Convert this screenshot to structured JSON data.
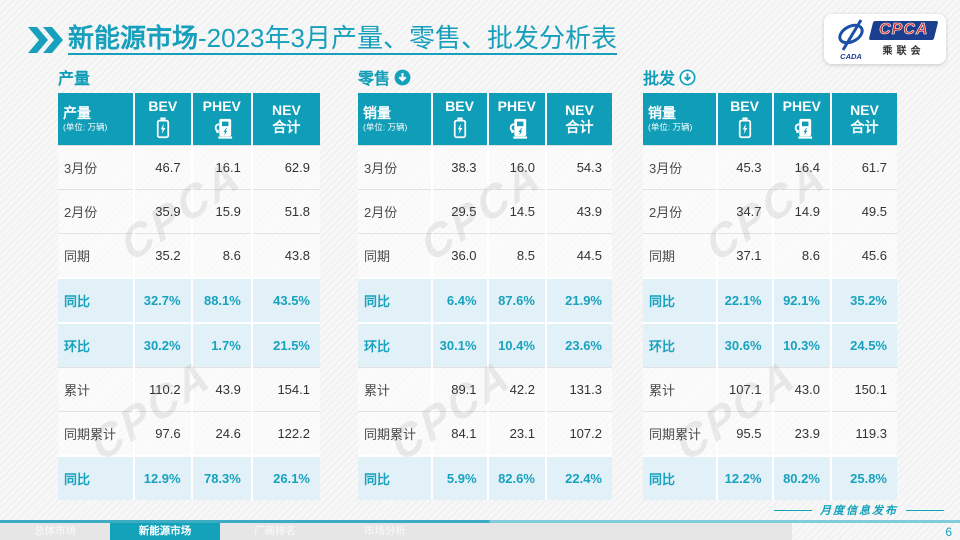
{
  "slide": {
    "title_bold": "新能源市场",
    "title_rest": "-2023年3月产量、零售、批发分析表",
    "footer_note": "月度信息发布",
    "page_number": "6"
  },
  "logo": {
    "cpca": "CPCA",
    "cada": "CADA",
    "assoc": "乘联会"
  },
  "columns": {
    "bev": "BEV",
    "phev": "PHEV",
    "nev_line1": "NEV",
    "nev_line2": "合计"
  },
  "unit_note": "(单位: 万辆)",
  "watermark": "CPCA",
  "highlight_rows": [
    3,
    4,
    7
  ],
  "tables": [
    {
      "section_title": "产量",
      "corner_label": "产量",
      "trend_icon": "none",
      "rows": [
        {
          "label": "3月份",
          "values": [
            "46.7",
            "16.1",
            "62.9"
          ]
        },
        {
          "label": "2月份",
          "values": [
            "35.9",
            "15.9",
            "51.8"
          ]
        },
        {
          "label": "同期",
          "values": [
            "35.2",
            "8.6",
            "43.8"
          ]
        },
        {
          "label": "同比",
          "values": [
            "32.7%",
            "88.1%",
            "43.5%"
          ]
        },
        {
          "label": "环比",
          "values": [
            "30.2%",
            "1.7%",
            "21.5%"
          ]
        },
        {
          "label": "累计",
          "values": [
            "110.2",
            "43.9",
            "154.1"
          ]
        },
        {
          "label": "同期累计",
          "values": [
            "97.6",
            "24.6",
            "122.2"
          ]
        },
        {
          "label": "同比",
          "values": [
            "12.9%",
            "78.3%",
            "26.1%"
          ]
        }
      ]
    },
    {
      "section_title": "零售",
      "corner_label": "销量",
      "trend_icon": "down-filled",
      "rows": [
        {
          "label": "3月份",
          "values": [
            "38.3",
            "16.0",
            "54.3"
          ]
        },
        {
          "label": "2月份",
          "values": [
            "29.5",
            "14.5",
            "43.9"
          ]
        },
        {
          "label": "同期",
          "values": [
            "36.0",
            "8.5",
            "44.5"
          ]
        },
        {
          "label": "同比",
          "values": [
            "6.4%",
            "87.6%",
            "21.9%"
          ]
        },
        {
          "label": "环比",
          "values": [
            "30.1%",
            "10.4%",
            "23.6%"
          ]
        },
        {
          "label": "累计",
          "values": [
            "89.1",
            "42.2",
            "131.3"
          ]
        },
        {
          "label": "同期累计",
          "values": [
            "84.1",
            "23.1",
            "107.2"
          ]
        },
        {
          "label": "同比",
          "values": [
            "5.9%",
            "82.6%",
            "22.4%"
          ]
        }
      ]
    },
    {
      "section_title": "批发",
      "corner_label": "销量",
      "trend_icon": "down-outline",
      "rows": [
        {
          "label": "3月份",
          "values": [
            "45.3",
            "16.4",
            "61.7"
          ]
        },
        {
          "label": "2月份",
          "values": [
            "34.7",
            "14.9",
            "49.5"
          ]
        },
        {
          "label": "同期",
          "values": [
            "37.1",
            "8.6",
            "45.6"
          ]
        },
        {
          "label": "同比",
          "values": [
            "22.1%",
            "92.1%",
            "35.2%"
          ]
        },
        {
          "label": "环比",
          "values": [
            "30.6%",
            "10.3%",
            "24.5%"
          ]
        },
        {
          "label": "累计",
          "values": [
            "107.1",
            "43.0",
            "150.1"
          ]
        },
        {
          "label": "同期累计",
          "values": [
            "95.5",
            "23.9",
            "119.3"
          ]
        },
        {
          "label": "同比",
          "values": [
            "12.2%",
            "80.2%",
            "25.8%"
          ]
        }
      ]
    }
  ],
  "footer": {
    "tabs": [
      {
        "label": "总体市场",
        "active": false
      },
      {
        "label": "新能源市场",
        "active": true
      },
      {
        "label": "厂商排名",
        "active": false
      },
      {
        "label": "市场分析",
        "active": false
      }
    ]
  },
  "colors": {
    "teal": "#0f9db8",
    "highlight_bg": "#e2f1f8",
    "logo_navy": "#1c3e8e",
    "logo_red": "#d5352c"
  }
}
